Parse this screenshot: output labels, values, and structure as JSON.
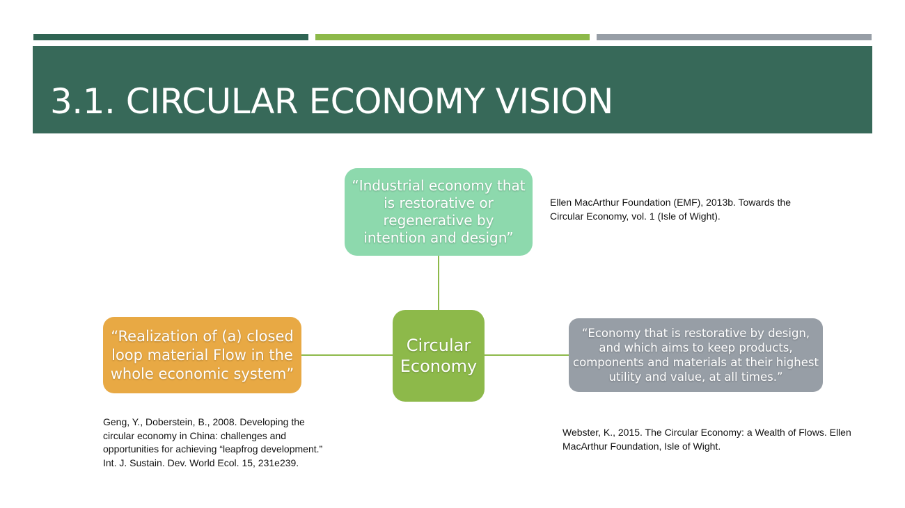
{
  "slide": {
    "title": "3.1.  CIRCULAR ECONOMY VISION"
  },
  "colors": {
    "dark_green": "#376959",
    "light_green": "#8db94a",
    "mint": "#8dd9ad",
    "orange": "#e8a944",
    "gray": "#979ea6",
    "connector": "#8db94a"
  },
  "diagram": {
    "center": "Circular Economy",
    "nodes": {
      "top": "“Industrial economy that is restorative or regenerative by intention and design”",
      "left": "“Realization of (a) closed loop material Flow in the whole economic system”",
      "right": "“Economy that is restorative by design, and which aims to keep products, components and materials at their highest utility and value, at all times.”"
    }
  },
  "citations": {
    "top": "Ellen MacArthur Foundation (EMF), 2013b. Towards the Circular Economy, vol. 1 (Isle of Wight).",
    "left": "Geng, Y., Doberstein, B., 2008. Developing the circular economy in China: challenges and opportunities for achieving “leapfrog development.” Int. J. Sustain. Dev. World Ecol. 15, 231e239.",
    "right": "Webster, K., 2015. The Circular Economy: a Wealth of Flows. Ellen MacArthur Foundation, Isle of Wight."
  }
}
